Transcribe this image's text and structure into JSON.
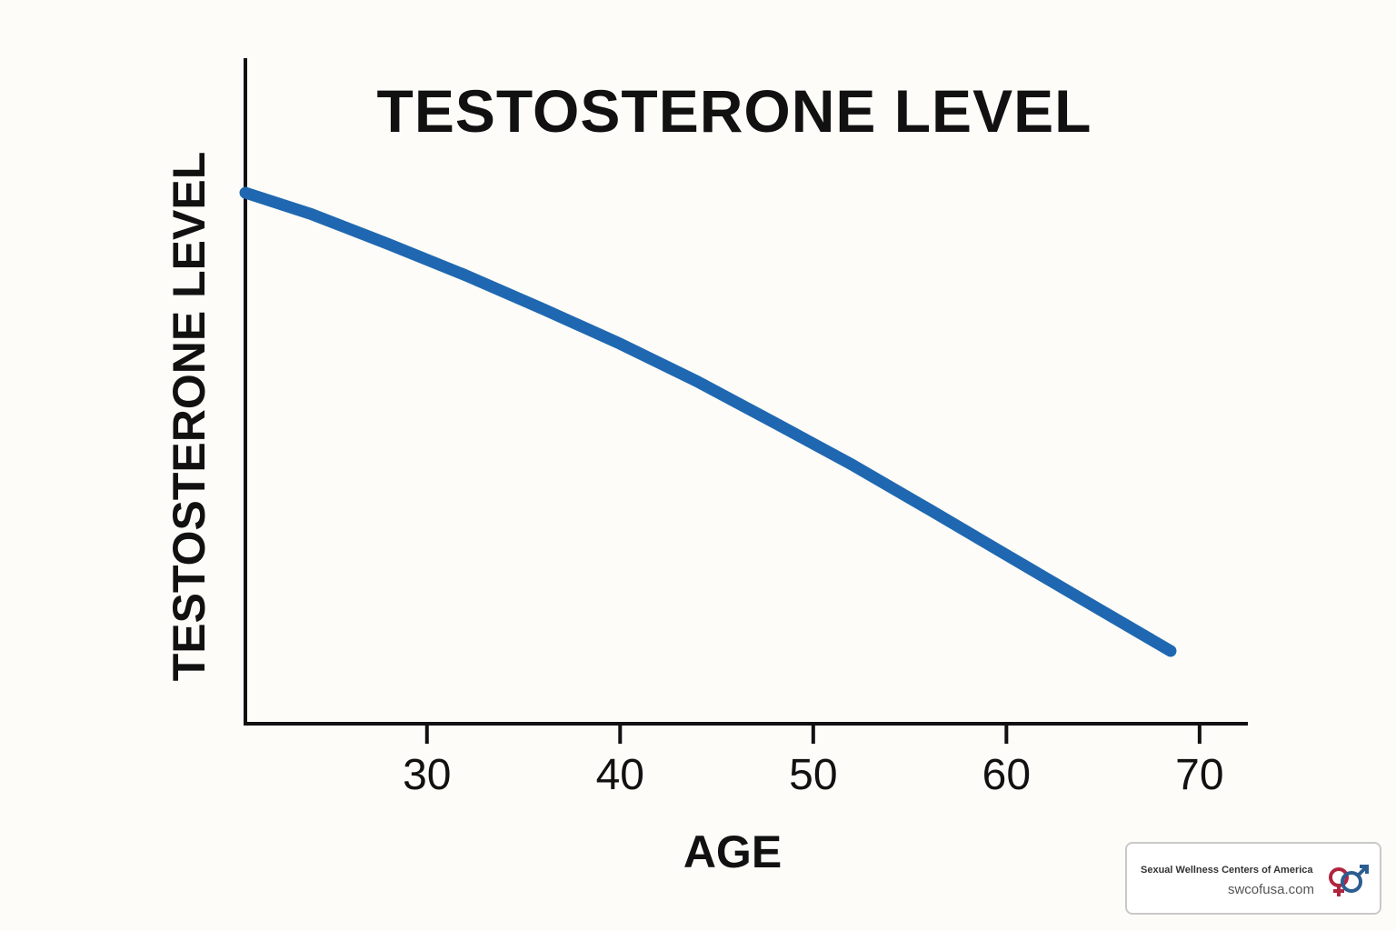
{
  "chart_data": {
    "type": "line",
    "title": "TESTOSTERONE LEVEL",
    "xlabel": "AGE",
    "ylabel": "TESTOSTERONE LEVEL",
    "xlim": [
      20.6,
      72.5
    ],
    "ylim": [
      0,
      100
    ],
    "x_ticks": [
      30,
      40,
      50,
      60,
      70
    ],
    "x_tick_labels": [
      "30",
      "40",
      "50",
      "60",
      "70"
    ],
    "y_ticks": [],
    "grid": false,
    "legend": "none",
    "series_color": "#1f68b1",
    "series": [
      {
        "x": [
          20.6,
          24,
          28,
          32,
          36,
          40,
          44,
          48,
          52,
          56,
          60,
          64,
          68.5
        ],
        "y": [
          100,
          96.4,
          91.3,
          86.0,
          80.3,
          74.4,
          68.0,
          61.0,
          53.9,
          46.3,
          38.6,
          30.9,
          22.3
        ]
      }
    ]
  },
  "watermark": {
    "org": "Sexual Wellness Centers of America",
    "site": "swcofusa.com",
    "logo_icon": "gender-symbols-icon",
    "logo_colors": [
      "#b0253f",
      "#2c5d91"
    ]
  }
}
